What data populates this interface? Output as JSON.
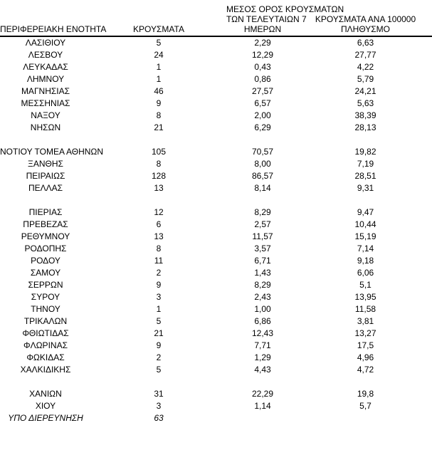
{
  "page": {
    "background_color": "#ffffff",
    "text_color": "#000000",
    "header_rule_color": "#000000"
  },
  "table": {
    "columns": [
      {
        "id": "region",
        "lines": [
          "ΠΕΡΙΦΕΡΕΙΑΚΗ ΕΝΟΤΗΤΑ"
        ]
      },
      {
        "id": "cases",
        "lines": [
          "ΚΡΟΥΣΜΑΤΑ"
        ]
      },
      {
        "id": "avg7days",
        "lines": [
          "ΜΕΣΟΣ ΟΡΟΣ ΚΡΟΥΣΜΑΤΩΝ",
          "ΤΩΝ ΤΕΛΕΥΤΑΙΩΝ 7",
          "ΗΜΕΡΩΝ"
        ]
      },
      {
        "id": "per100k",
        "lines": [
          "ΚΡΟΥΣΜΑΤΑ ΑΝΑ 100000",
          "ΠΛΗΘΥΣΜΟ"
        ]
      }
    ],
    "rows": [
      {
        "region": "ΛΑΣΙΘΙΟΥ",
        "cases": "5",
        "avg7days": "2,29",
        "per100k": "6,63"
      },
      {
        "region": "ΛΕΣΒΟΥ",
        "cases": "24",
        "avg7days": "12,29",
        "per100k": "27,77"
      },
      {
        "region": "ΛΕΥΚΑΔΑΣ",
        "cases": "1",
        "avg7days": "0,43",
        "per100k": "4,22"
      },
      {
        "region": "ΛΗΜΝΟΥ",
        "cases": "1",
        "avg7days": "0,86",
        "per100k": "5,79"
      },
      {
        "region": "ΜΑΓΝΗΣΙΑΣ",
        "cases": "46",
        "avg7days": "27,57",
        "per100k": "24,21"
      },
      {
        "region": "ΜΕΣΣΗΝΙΑΣ",
        "cases": "9",
        "avg7days": "6,57",
        "per100k": "5,63"
      },
      {
        "region": "ΝΑΞΟΥ",
        "cases": "8",
        "avg7days": "2,00",
        "per100k": "38,39"
      },
      {
        "region": "ΝΗΣΩΝ",
        "cases": "21",
        "avg7days": "6,29",
        "per100k": "28,13"
      },
      {
        "type": "separator"
      },
      {
        "region": "ΝΟΤΙΟΥ ΤΟΜΕΑ ΑΘΗΝΩΝ",
        "cases": "105",
        "avg7days": "70,57",
        "per100k": "19,82"
      },
      {
        "region": "ΞΑΝΘΗΣ",
        "cases": "8",
        "avg7days": "8,00",
        "per100k": "7,19"
      },
      {
        "region": "ΠΕΙΡΑΙΩΣ",
        "cases": "128",
        "avg7days": "86,57",
        "per100k": "28,51"
      },
      {
        "region": "ΠΕΛΛΑΣ",
        "cases": "13",
        "avg7days": "8,14",
        "per100k": "9,31"
      },
      {
        "type": "separator"
      },
      {
        "region": "ΠΙΕΡΙΑΣ",
        "cases": "12",
        "avg7days": "8,29",
        "per100k": "9,47"
      },
      {
        "region": "ΠΡΕΒΕΖΑΣ",
        "cases": "6",
        "avg7days": "2,57",
        "per100k": "10,44"
      },
      {
        "region": "ΡΕΘΥΜΝΟΥ",
        "cases": "13",
        "avg7days": "11,57",
        "per100k": "15,19"
      },
      {
        "region": "ΡΟΔΟΠΗΣ",
        "cases": "8",
        "avg7days": "3,57",
        "per100k": "7,14"
      },
      {
        "region": "ΡΟΔΟΥ",
        "cases": "11",
        "avg7days": "6,71",
        "per100k": "9,18"
      },
      {
        "region": "ΣΑΜΟΥ",
        "cases": "2",
        "avg7days": "1,43",
        "per100k": "6,06"
      },
      {
        "region": "ΣΕΡΡΩΝ",
        "cases": "9",
        "avg7days": "8,29",
        "per100k": "5,1"
      },
      {
        "region": "ΣΥΡΟΥ",
        "cases": "3",
        "avg7days": "2,43",
        "per100k": "13,95"
      },
      {
        "region": "ΤΗΝΟΥ",
        "cases": "1",
        "avg7days": "1,00",
        "per100k": "11,58"
      },
      {
        "region": "ΤΡΙΚΑΛΩΝ",
        "cases": "5",
        "avg7days": "6,86",
        "per100k": "3,81"
      },
      {
        "region": "ΦΘΙΩΤΙΔΑΣ",
        "cases": "21",
        "avg7days": "12,43",
        "per100k": "13,27"
      },
      {
        "region": "ΦΛΩΡΙΝΑΣ",
        "cases": "9",
        "avg7days": "7,71",
        "per100k": "17,5"
      },
      {
        "region": "ΦΩΚΙΔΑΣ",
        "cases": "2",
        "avg7days": "1,29",
        "per100k": "4,96"
      },
      {
        "region": "ΧΑΛΚΙΔΙΚΗΣ",
        "cases": "5",
        "avg7days": "4,43",
        "per100k": "4,72"
      },
      {
        "type": "separator"
      },
      {
        "region": "ΧΑΝΙΩΝ",
        "cases": "31",
        "avg7days": "22,29",
        "per100k": "19,8"
      },
      {
        "region": "ΧΙΟΥ",
        "cases": "3",
        "avg7days": "1,14",
        "per100k": "5,7"
      },
      {
        "region": "ΥΠΟ ΔΙΕΡΕΥΝΗΣΗ",
        "cases": "63",
        "avg7days": "",
        "per100k": "",
        "italic": true
      }
    ]
  }
}
